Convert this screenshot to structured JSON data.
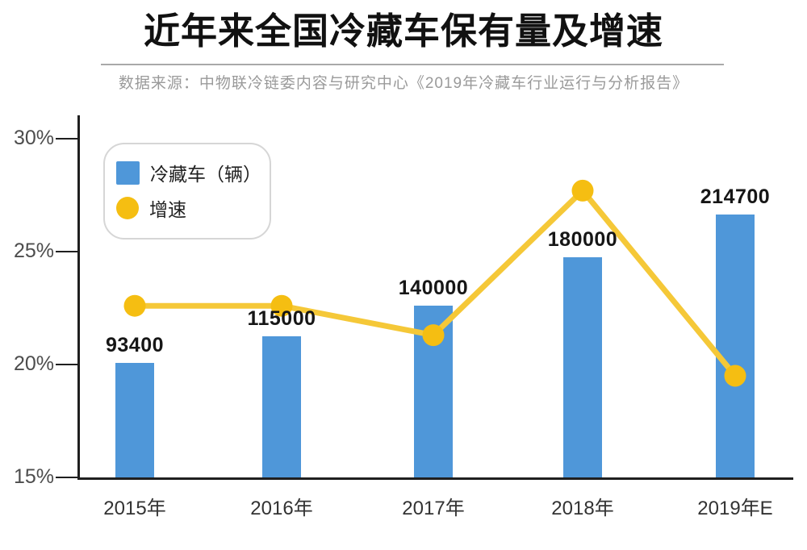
{
  "chart_data": {
    "type": "bar",
    "title": "近年来全国冷藏车保有量及增速",
    "subtitle": "数据来源：中物联冷链委内容与研究中心《2019年冷藏车行业运行与分析报告》",
    "categories": [
      "2015年",
      "2016年",
      "2017年",
      "2018年",
      "2019年E"
    ],
    "series": [
      {
        "name": "冷藏车（辆）",
        "type": "bar",
        "values": [
          93400,
          115000,
          140000,
          180000,
          214700
        ],
        "unit": "辆"
      },
      {
        "name": "增速",
        "type": "line",
        "values": [
          22.6,
          22.6,
          21.3,
          27.7,
          19.5
        ],
        "unit": "%"
      }
    ],
    "y_axis": {
      "ticks": [
        "30%",
        "25%",
        "20%",
        "15%"
      ],
      "tick_values": [
        30,
        25,
        20,
        15
      ],
      "min": 15,
      "max": 30
    },
    "legend_position": "top-left",
    "grid": false
  },
  "colors": {
    "bar": "#4F97D9",
    "line_stroke": "#F5C838",
    "line_dot": "#F5BE12",
    "axis": "#1f1f1f",
    "value_label": "#161616",
    "tick_label": "#4d4d4d",
    "subtitle": "#9a9a9a"
  }
}
